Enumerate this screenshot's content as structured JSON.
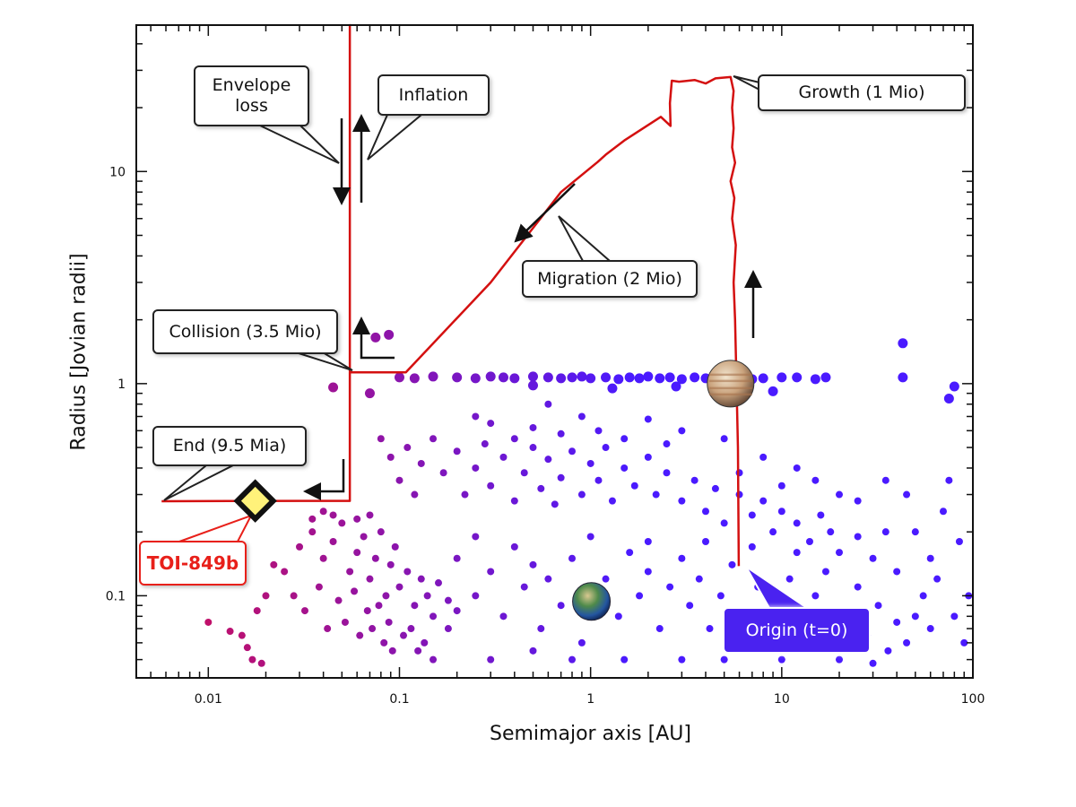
{
  "chart_data": {
    "type": "scatter",
    "xlabel": "Semimajor axis [AU]",
    "ylabel": "Radius [Jovian radii]",
    "xscale": "log",
    "yscale": "log",
    "xlim": [
      0.0042,
      100
    ],
    "ylim": [
      0.041,
      49
    ],
    "x_ticks": [
      0.01,
      0.1,
      1,
      10,
      100
    ],
    "x_tick_labels": [
      "0.01",
      "0.1",
      "1",
      "10",
      "100"
    ],
    "y_ticks": [
      0.1,
      1,
      10
    ],
    "y_tick_labels": [
      "0.1",
      "1",
      "10"
    ],
    "grid": false,
    "colors": {
      "track": "#d41010",
      "dots_inner": "#c0106a",
      "dots_outer": "#4a1aff",
      "toi": "#e8201a",
      "diamond_fill": "#fff27a"
    },
    "population_points": [
      [
        0.03,
        0.17
      ],
      [
        0.035,
        0.2
      ],
      [
        0.04,
        0.15
      ],
      [
        0.045,
        0.18
      ],
      [
        0.05,
        0.22
      ],
      [
        0.055,
        0.13
      ],
      [
        0.06,
        0.16
      ],
      [
        0.065,
        0.19
      ],
      [
        0.07,
        0.12
      ],
      [
        0.075,
        0.15
      ],
      [
        0.08,
        0.2
      ],
      [
        0.085,
        0.1
      ],
      [
        0.09,
        0.14
      ],
      [
        0.095,
        0.17
      ],
      [
        0.1,
        0.11
      ],
      [
        0.11,
        0.13
      ],
      [
        0.12,
        0.09
      ],
      [
        0.13,
        0.12
      ],
      [
        0.14,
        0.1
      ],
      [
        0.15,
        0.08
      ],
      [
        0.16,
        0.115
      ],
      [
        0.18,
        0.095
      ],
      [
        0.2,
        0.085
      ],
      [
        0.025,
        0.13
      ],
      [
        0.028,
        0.1
      ],
      [
        0.032,
        0.085
      ],
      [
        0.038,
        0.11
      ],
      [
        0.042,
        0.07
      ],
      [
        0.048,
        0.095
      ],
      [
        0.052,
        0.075
      ],
      [
        0.058,
        0.105
      ],
      [
        0.062,
        0.065
      ],
      [
        0.068,
        0.085
      ],
      [
        0.072,
        0.07
      ],
      [
        0.078,
        0.09
      ],
      [
        0.083,
        0.06
      ],
      [
        0.088,
        0.075
      ],
      [
        0.092,
        0.055
      ],
      [
        0.105,
        0.065
      ],
      [
        0.115,
        0.07
      ],
      [
        0.125,
        0.055
      ],
      [
        0.135,
        0.06
      ],
      [
        0.02,
        0.1
      ],
      [
        0.022,
        0.14
      ],
      [
        0.018,
        0.085
      ],
      [
        0.01,
        0.075
      ],
      [
        0.013,
        0.068
      ],
      [
        0.015,
        0.065
      ],
      [
        0.017,
        0.05
      ],
      [
        0.019,
        0.048
      ],
      [
        0.016,
        0.057
      ],
      [
        0.04,
        0.25
      ],
      [
        0.045,
        0.24
      ],
      [
        0.06,
        0.23
      ],
      [
        0.07,
        0.24
      ],
      [
        0.035,
        0.23
      ],
      [
        0.08,
        0.55
      ],
      [
        0.09,
        0.45
      ],
      [
        0.1,
        0.35
      ],
      [
        0.11,
        0.5
      ],
      [
        0.12,
        0.3
      ],
      [
        0.13,
        0.42
      ],
      [
        0.15,
        0.55
      ],
      [
        0.17,
        0.38
      ],
      [
        0.2,
        0.48
      ],
      [
        0.22,
        0.3
      ],
      [
        0.25,
        0.4
      ],
      [
        0.28,
        0.52
      ],
      [
        0.3,
        0.33
      ],
      [
        0.35,
        0.45
      ],
      [
        0.4,
        0.28
      ],
      [
        0.45,
        0.38
      ],
      [
        0.5,
        0.5
      ],
      [
        0.55,
        0.32
      ],
      [
        0.6,
        0.44
      ],
      [
        0.65,
        0.27
      ],
      [
        0.7,
        0.36
      ],
      [
        0.8,
        0.48
      ],
      [
        0.9,
        0.3
      ],
      [
        1,
        0.42
      ],
      [
        1.1,
        0.35
      ],
      [
        1.2,
        0.5
      ],
      [
        1.3,
        0.28
      ],
      [
        1.5,
        0.4
      ],
      [
        1.7,
        0.33
      ],
      [
        2,
        0.45
      ],
      [
        2.2,
        0.3
      ],
      [
        2.5,
        0.38
      ],
      [
        3,
        0.28
      ],
      [
        3.5,
        0.35
      ],
      [
        4,
        0.25
      ],
      [
        4.5,
        0.32
      ],
      [
        5,
        0.22
      ],
      [
        6,
        0.3
      ],
      [
        7,
        0.24
      ],
      [
        8,
        0.28
      ],
      [
        9,
        0.2
      ],
      [
        10,
        0.25
      ],
      [
        12,
        0.22
      ],
      [
        14,
        0.18
      ],
      [
        16,
        0.24
      ],
      [
        18,
        0.2
      ],
      [
        20,
        0.16
      ],
      [
        25,
        0.19
      ],
      [
        30,
        0.15
      ],
      [
        35,
        0.2
      ],
      [
        40,
        0.13
      ],
      [
        0.3,
        0.65
      ],
      [
        0.5,
        0.62
      ],
      [
        0.7,
        0.58
      ],
      [
        1.5,
        0.55
      ],
      [
        2.5,
        0.52
      ],
      [
        0.6,
        0.8
      ],
      [
        0.9,
        0.7
      ],
      [
        2,
        0.68
      ],
      [
        3,
        0.6
      ],
      [
        5,
        0.55
      ],
      [
        8,
        0.45
      ],
      [
        12,
        0.4
      ],
      [
        15,
        0.35
      ],
      [
        20,
        0.3
      ],
      [
        25,
        0.28
      ],
      [
        0.4,
        0.55
      ],
      [
        1.1,
        0.6
      ],
      [
        0.25,
        0.7
      ],
      [
        6,
        0.38
      ],
      [
        10,
        0.33
      ],
      [
        0.2,
        0.15
      ],
      [
        0.25,
        0.1
      ],
      [
        0.3,
        0.13
      ],
      [
        0.35,
        0.08
      ],
      [
        0.4,
        0.17
      ],
      [
        0.45,
        0.11
      ],
      [
        0.5,
        0.14
      ],
      [
        0.55,
        0.07
      ],
      [
        0.6,
        0.12
      ],
      [
        0.7,
        0.09
      ],
      [
        0.8,
        0.15
      ],
      [
        0.9,
        0.06
      ],
      [
        1.2,
        0.12
      ],
      [
        1.4,
        0.08
      ],
      [
        1.6,
        0.16
      ],
      [
        1.8,
        0.1
      ],
      [
        2,
        0.13
      ],
      [
        2.3,
        0.07
      ],
      [
        2.6,
        0.11
      ],
      [
        3,
        0.15
      ],
      [
        3.3,
        0.09
      ],
      [
        3.7,
        0.12
      ],
      [
        4.2,
        0.07
      ],
      [
        4.8,
        0.1
      ],
      [
        5.5,
        0.14
      ],
      [
        6.5,
        0.08
      ],
      [
        7.5,
        0.11
      ],
      [
        8.5,
        0.06
      ],
      [
        9.5,
        0.09
      ],
      [
        11,
        0.12
      ],
      [
        13,
        0.07
      ],
      [
        15,
        0.1
      ],
      [
        17,
        0.13
      ],
      [
        19,
        0.06
      ],
      [
        22,
        0.085
      ],
      [
        25,
        0.11
      ],
      [
        28,
        0.065
      ],
      [
        32,
        0.09
      ],
      [
        36,
        0.055
      ],
      [
        40,
        0.075
      ],
      [
        45,
        0.06
      ],
      [
        50,
        0.08
      ],
      [
        55,
        0.1
      ],
      [
        60,
        0.07
      ],
      [
        0.3,
        0.05
      ],
      [
        0.5,
        0.055
      ],
      [
        0.8,
        0.05
      ],
      [
        1.5,
        0.05
      ],
      [
        3,
        0.05
      ],
      [
        5,
        0.05
      ],
      [
        10,
        0.05
      ],
      [
        20,
        0.05
      ],
      [
        30,
        0.048
      ],
      [
        2,
        0.18
      ],
      [
        4,
        0.18
      ],
      [
        7,
        0.17
      ],
      [
        12,
        0.16
      ],
      [
        0.25,
        0.19
      ],
      [
        1,
        0.19
      ],
      [
        0.15,
        0.05
      ],
      [
        0.18,
        0.07
      ],
      [
        50,
        0.2
      ],
      [
        60,
        0.15
      ],
      [
        70,
        0.25
      ],
      [
        65,
        0.12
      ],
      [
        80,
        0.08
      ],
      [
        90,
        0.06
      ],
      [
        95,
        0.1
      ],
      [
        45,
        0.3
      ],
      [
        35,
        0.35
      ],
      [
        85,
        0.18
      ],
      [
        75,
        0.35
      ]
    ],
    "giant_points": [
      [
        0.1,
        1.07
      ],
      [
        0.12,
        1.06
      ],
      [
        0.15,
        1.08
      ],
      [
        0.2,
        1.07
      ],
      [
        0.25,
        1.06
      ],
      [
        0.3,
        1.08
      ],
      [
        0.35,
        1.07
      ],
      [
        0.4,
        1.06
      ],
      [
        0.5,
        1.08
      ],
      [
        0.6,
        1.07
      ],
      [
        0.7,
        1.06
      ],
      [
        0.8,
        1.07
      ],
      [
        0.9,
        1.08
      ],
      [
        1.0,
        1.06
      ],
      [
        1.2,
        1.07
      ],
      [
        1.4,
        1.05
      ],
      [
        1.6,
        1.07
      ],
      [
        1.8,
        1.06
      ],
      [
        2,
        1.08
      ],
      [
        2.3,
        1.06
      ],
      [
        2.6,
        1.07
      ],
      [
        3,
        1.05
      ],
      [
        3.5,
        1.07
      ],
      [
        4,
        1.06
      ],
      [
        4.5,
        1.07
      ],
      [
        6,
        1.07
      ],
      [
        7,
        1.05
      ],
      [
        8,
        1.06
      ],
      [
        10,
        1.07
      ],
      [
        12,
        1.07
      ],
      [
        15,
        1.05
      ],
      [
        17,
        1.07
      ],
      [
        0.075,
        1.65
      ],
      [
        0.088,
        1.7
      ],
      [
        43,
        1.55
      ],
      [
        43,
        1.07
      ],
      [
        80,
        0.97
      ],
      [
        0.045,
        0.96
      ],
      [
        0.07,
        0.9
      ],
      [
        75,
        0.85
      ],
      [
        0.5,
        0.98
      ],
      [
        1.3,
        0.95
      ],
      [
        2.8,
        0.97
      ],
      [
        6.5,
        0.95
      ],
      [
        9,
        0.92
      ]
    ],
    "track": [
      [
        5.96,
        0.138
      ],
      [
        5.9,
        0.5
      ],
      [
        5.8,
        1.0
      ],
      [
        5.7,
        2.0
      ],
      [
        5.6,
        3.0
      ],
      [
        5.75,
        4.5
      ],
      [
        5.5,
        6.0
      ],
      [
        5.65,
        7.5
      ],
      [
        5.4,
        9.0
      ],
      [
        5.7,
        11
      ],
      [
        5.5,
        13
      ],
      [
        5.6,
        16
      ],
      [
        5.5,
        20
      ],
      [
        5.6,
        24
      ],
      [
        5.4,
        27.9
      ],
      [
        4.5,
        27.5
      ],
      [
        4.0,
        26.0
      ],
      [
        3.5,
        27.0
      ],
      [
        2.9,
        26.5
      ],
      [
        2.66,
        26.8
      ],
      [
        2.6,
        21
      ],
      [
        2.62,
        16.4
      ],
      [
        2.33,
        18.1
      ],
      [
        1.5,
        14.0
      ],
      [
        1.2,
        12.0
      ],
      [
        1.09,
        11.1
      ],
      [
        0.7,
        8.0
      ],
      [
        0.3,
        3.0
      ],
      [
        0.108,
        1.13
      ],
      [
        0.055,
        1.13
      ],
      [
        0.055,
        49
      ],
      [
        0.055,
        49
      ],
      [
        0.055,
        0.28
      ],
      [
        0.03,
        0.28
      ],
      [
        0.0057,
        0.279
      ]
    ],
    "markers": {
      "toi": {
        "label": "TOI-849b",
        "a": 0.0176,
        "r": 0.28
      },
      "jupiter": {
        "a": 5.4,
        "r": 1.0
      },
      "earth": {
        "a": 1.01,
        "r": 0.094
      }
    },
    "annotations": {
      "envelope_loss": "Envelope loss",
      "inflation": "Inflation",
      "growth": "Growth (1 Mio)",
      "migration": "Migration (2 Mio)",
      "collision": "Collision (3.5 Mio)",
      "end": "End (9.5 Mia)",
      "origin": "Origin (t=0)"
    }
  }
}
